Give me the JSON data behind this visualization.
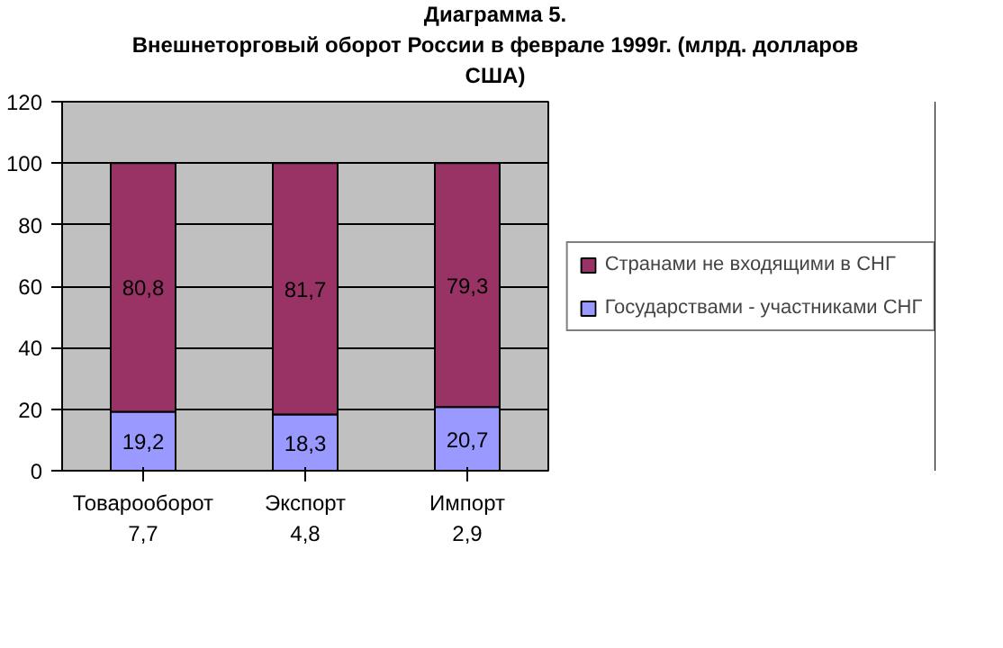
{
  "chart_data": {
    "type": "bar",
    "stacked": true,
    "title": "Диаграмма 5.",
    "subtitle": "Внешнеторговый оборот России в феврале 1999г. (млрд. долларов США)",
    "categories": [
      "Товарооборот\n7,7",
      "Экспорт\n4,8",
      "Импорт\n2,9"
    ],
    "series": [
      {
        "name": "Государствами - участниками СНГ",
        "color": "#9999ff",
        "values": [
          19.2,
          18.3,
          20.7
        ],
        "value_labels": [
          "19,2",
          "18,3",
          "20,7"
        ]
      },
      {
        "name": "Странами не входящими в СНГ",
        "color": "#993366",
        "values": [
          80.8,
          81.7,
          79.3
        ],
        "value_labels": [
          "80,8",
          "81,7",
          "79,3"
        ]
      }
    ],
    "ylim": [
      0,
      120
    ],
    "yticks": [
      0,
      20,
      40,
      60,
      80,
      100,
      120
    ],
    "grid": "y",
    "legend": "right"
  }
}
